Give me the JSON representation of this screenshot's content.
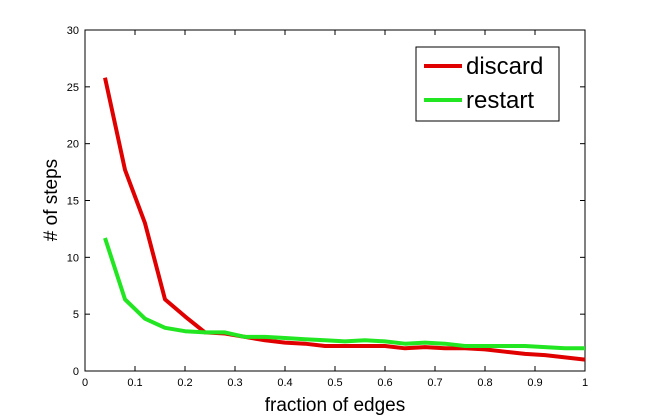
{
  "chart_data": {
    "type": "line",
    "title": "",
    "xlabel": "fraction of edges",
    "ylabel": "# of steps",
    "xlim": [
      0,
      1
    ],
    "ylim": [
      0,
      30
    ],
    "xticks": [
      0,
      0.1,
      0.2,
      0.3,
      0.4,
      0.5,
      0.6,
      0.7,
      0.8,
      0.9,
      1
    ],
    "xtick_labels": [
      "0",
      "0.1",
      "0.2",
      "0.3",
      "0.4",
      "0.5",
      "0.6",
      "0.7",
      "0.8",
      "0.9",
      "1"
    ],
    "yticks": [
      0,
      5,
      10,
      15,
      20,
      25,
      30
    ],
    "ytick_labels": [
      "0",
      "5",
      "10",
      "15",
      "20",
      "25",
      "30"
    ],
    "grid": false,
    "legend": "top-right",
    "series": [
      {
        "name": "discard",
        "color": "#e00000",
        "x": [
          0.04,
          0.08,
          0.12,
          0.16,
          0.2,
          0.24,
          0.28,
          0.32,
          0.36,
          0.4,
          0.44,
          0.48,
          0.52,
          0.56,
          0.6,
          0.64,
          0.68,
          0.72,
          0.76,
          0.8,
          0.84,
          0.88,
          0.92,
          0.96,
          1.0
        ],
        "y": [
          25.8,
          17.7,
          13.0,
          6.3,
          4.8,
          3.4,
          3.3,
          3.0,
          2.7,
          2.5,
          2.4,
          2.2,
          2.2,
          2.2,
          2.2,
          2.0,
          2.1,
          2.0,
          2.0,
          1.9,
          1.7,
          1.5,
          1.4,
          1.2,
          1.0
        ]
      },
      {
        "name": "restart",
        "color": "#22e622",
        "x": [
          0.04,
          0.08,
          0.12,
          0.16,
          0.2,
          0.24,
          0.28,
          0.32,
          0.36,
          0.4,
          0.44,
          0.48,
          0.52,
          0.56,
          0.6,
          0.64,
          0.68,
          0.72,
          0.76,
          0.8,
          0.84,
          0.88,
          0.92,
          0.96,
          1.0
        ],
        "y": [
          11.7,
          6.3,
          4.6,
          3.8,
          3.5,
          3.4,
          3.4,
          3.0,
          3.0,
          2.9,
          2.8,
          2.7,
          2.6,
          2.7,
          2.6,
          2.4,
          2.5,
          2.4,
          2.2,
          2.2,
          2.2,
          2.2,
          2.1,
          2.0,
          2.0
        ]
      }
    ]
  }
}
